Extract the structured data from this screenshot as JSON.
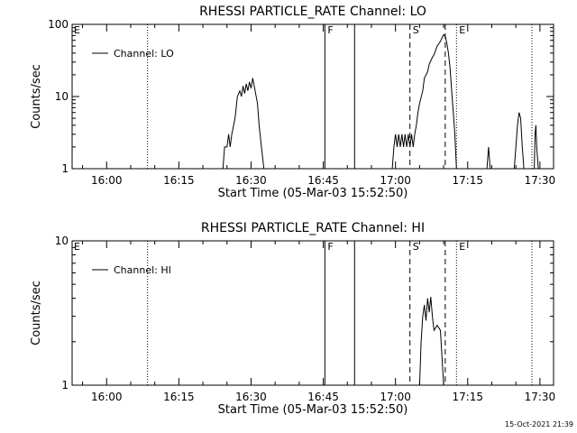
{
  "timestamp": "15-Oct-2021 21:39",
  "chart_data": [
    {
      "type": "line",
      "title": "RHESSI PARTICLE_RATE Channel: LO",
      "xlabel": "Start Time (05-Mar-03 15:52:50)",
      "ylabel": "Counts/sec",
      "yscale": "log",
      "ylim": [
        1,
        100
      ],
      "xlim": [
        "15:52:50",
        "17:32:50"
      ],
      "xticks": [
        "16:00",
        "16:15",
        "16:30",
        "16:45",
        "17:00",
        "17:15",
        "17:30"
      ],
      "yticks": [
        "1",
        "10",
        "100"
      ],
      "legend": "top-left",
      "series": [
        {
          "name": "Channel: LO",
          "segments": [
            [
              [
                "16:24:10",
                1
              ],
              [
                "16:24:30",
                2
              ],
              [
                "16:25:00",
                2
              ],
              [
                "16:25:20",
                3
              ],
              [
                "16:25:40",
                2
              ],
              [
                "16:26:00",
                3
              ],
              [
                "16:26:40",
                5
              ],
              [
                "16:27:10",
                10
              ],
              [
                "16:27:40",
                12
              ],
              [
                "16:28:00",
                10
              ],
              [
                "16:28:20",
                14
              ],
              [
                "16:28:40",
                11
              ],
              [
                "16:29:00",
                15
              ],
              [
                "16:29:20",
                12
              ],
              [
                "16:29:40",
                16
              ],
              [
                "16:30:00",
                13
              ],
              [
                "16:30:20",
                18
              ],
              [
                "16:30:40",
                14
              ],
              [
                "16:31:20",
                8
              ],
              [
                "16:31:40",
                4
              ],
              [
                "16:32:10",
                2
              ],
              [
                "16:32:40",
                1
              ]
            ],
            [
              [
                "16:59:20",
                1
              ],
              [
                "16:59:40",
                2
              ],
              [
                "17:00:00",
                3
              ],
              [
                "17:00:20",
                2
              ],
              [
                "17:00:40",
                3
              ],
              [
                "17:01:00",
                2
              ],
              [
                "17:01:20",
                3
              ],
              [
                "17:01:40",
                2
              ],
              [
                "17:02:00",
                3
              ],
              [
                "17:02:20",
                2
              ],
              [
                "17:02:40",
                3
              ],
              [
                "17:03:00",
                2
              ],
              [
                "17:03:20",
                3
              ],
              [
                "17:03:40",
                2
              ],
              [
                "17:04:00",
                3
              ],
              [
                "17:04:20",
                4
              ],
              [
                "17:04:40",
                6
              ],
              [
                "17:05:00",
                8
              ],
              [
                "17:05:40",
                12
              ],
              [
                "17:06:00",
                18
              ],
              [
                "17:06:40",
                22
              ],
              [
                "17:07:00",
                28
              ],
              [
                "17:07:40",
                35
              ],
              [
                "17:08:00",
                38
              ],
              [
                "17:08:40",
                50
              ],
              [
                "17:09:20",
                58
              ],
              [
                "17:09:40",
                65
              ],
              [
                "17:10:00",
                72
              ],
              [
                "17:10:20",
                68
              ],
              [
                "17:10:40",
                55
              ],
              [
                "17:11:00",
                40
              ],
              [
                "17:11:20",
                25
              ],
              [
                "17:11:40",
                12
              ],
              [
                "17:12:00",
                6
              ],
              [
                "17:12:20",
                3
              ],
              [
                "17:12:40",
                1
              ]
            ],
            [
              [
                "17:19:00",
                1
              ],
              [
                "17:19:20",
                2
              ],
              [
                "17:19:40",
                1
              ]
            ],
            [
              [
                "17:24:40",
                1
              ],
              [
                "17:25:00",
                2
              ],
              [
                "17:25:20",
                4
              ],
              [
                "17:25:40",
                6
              ],
              [
                "17:26:00",
                5
              ],
              [
                "17:26:20",
                2
              ],
              [
                "17:26:40",
                1
              ]
            ],
            [
              [
                "17:28:50",
                1
              ],
              [
                "17:29:00",
                3
              ],
              [
                "17:29:10",
                4
              ],
              [
                "17:29:20",
                2
              ],
              [
                "17:29:40",
                1
              ]
            ]
          ]
        }
      ],
      "vlines": [
        {
          "time": "16:08:30",
          "style": "dotted",
          "label": ""
        },
        {
          "time": "16:45:20",
          "style": "solid",
          "label": "F"
        },
        {
          "time": "16:51:30",
          "style": "solid",
          "label": ""
        },
        {
          "time": "17:03:00",
          "style": "dashed",
          "label": "S"
        },
        {
          "time": "17:10:20",
          "style": "dashed",
          "label": ""
        },
        {
          "time": "17:12:40",
          "style": "dotted",
          "label": "E"
        },
        {
          "time": "17:28:20",
          "style": "dotted",
          "label": ""
        }
      ],
      "edge_marks": [
        "E"
      ]
    },
    {
      "type": "line",
      "title": "RHESSI PARTICLE_RATE Channel: HI",
      "xlabel": "Start Time (05-Mar-03 15:52:50)",
      "ylabel": "Counts/sec",
      "yscale": "log",
      "ylim": [
        1,
        10
      ],
      "xlim": [
        "15:52:50",
        "17:32:50"
      ],
      "xticks": [
        "16:00",
        "16:15",
        "16:30",
        "16:45",
        "17:00",
        "17:15",
        "17:30"
      ],
      "yticks": [
        "1",
        "10"
      ],
      "legend": "top-left",
      "series": [
        {
          "name": "Channel: HI",
          "segments": [
            [
              [
                "17:05:00",
                1
              ],
              [
                "17:05:20",
                2
              ],
              [
                "17:05:40",
                3
              ],
              [
                "17:06:00",
                3.6
              ],
              [
                "17:06:20",
                2.8
              ],
              [
                "17:06:40",
                4
              ],
              [
                "17:07:00",
                3.2
              ],
              [
                "17:07:20",
                4.1
              ],
              [
                "17:07:40",
                3
              ],
              [
                "17:08:00",
                2.4
              ],
              [
                "17:08:40",
                2.6
              ],
              [
                "17:09:20",
                2.4
              ],
              [
                "17:10:00",
                1
              ]
            ]
          ]
        }
      ],
      "vlines": [
        {
          "time": "16:08:30",
          "style": "dotted",
          "label": ""
        },
        {
          "time": "16:45:20",
          "style": "solid",
          "label": "F"
        },
        {
          "time": "16:51:30",
          "style": "solid",
          "label": ""
        },
        {
          "time": "17:03:00",
          "style": "dashed",
          "label": "S"
        },
        {
          "time": "17:10:20",
          "style": "dashed",
          "label": ""
        },
        {
          "time": "17:12:40",
          "style": "dotted",
          "label": "E"
        },
        {
          "time": "17:28:20",
          "style": "dotted",
          "label": ""
        }
      ],
      "edge_marks": [
        "E"
      ]
    }
  ]
}
